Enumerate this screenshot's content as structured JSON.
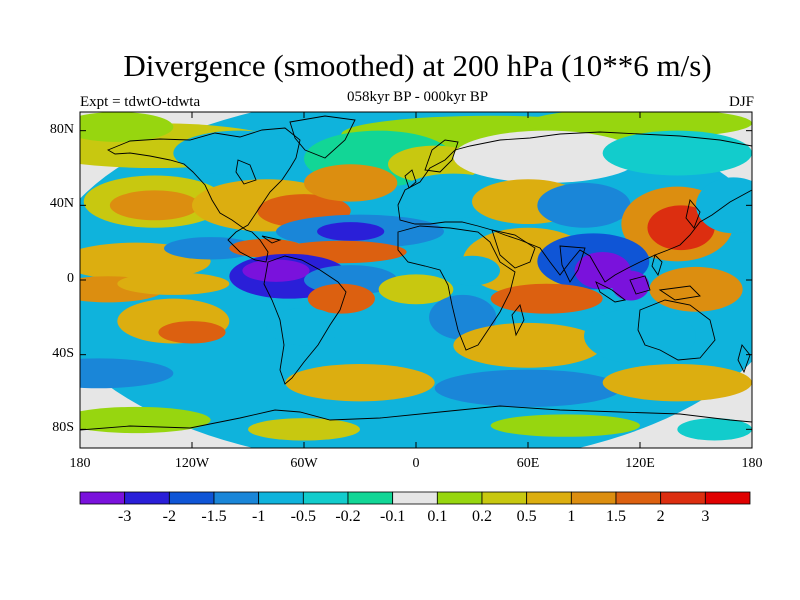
{
  "header": {
    "title": "Divergence (smoothed) at 200 hPa (10**6 m/s)",
    "subtitle": "058kyr BP - 000kyr BP",
    "experiment": "Expt = tdwtO-tdwta",
    "season": "DJF"
  },
  "axes": {
    "lat_labels": [
      "80N",
      "40N",
      "0",
      "40S",
      "80S"
    ],
    "lat_values": [
      80,
      40,
      0,
      -40,
      -80
    ],
    "lon_labels": [
      "180",
      "120W",
      "60W",
      "0",
      "60E",
      "120E",
      "180"
    ],
    "lon_values": [
      -180,
      -120,
      -60,
      0,
      60,
      120,
      180
    ],
    "lat_range": [
      -90,
      90
    ],
    "lon_range": [
      -180,
      180
    ]
  },
  "colorbar": {
    "colors": [
      "#7a12dc",
      "#2a1fd8",
      "#0f55d6",
      "#1a86d8",
      "#0fb3dc",
      "#12cccc",
      "#12d696",
      "#e6e6e6",
      "#97d60f",
      "#c8c810",
      "#dcae10",
      "#dc8e10",
      "#dc6010",
      "#dc2e10",
      "#e00000"
    ],
    "labels": [
      "-3",
      "-2",
      "-1.5",
      "-1",
      "-0.5",
      "-0.2",
      "-0.1",
      "0.1",
      "0.2",
      "0.5",
      "1",
      "1.5",
      "2",
      "3"
    ]
  },
  "field_blobs": [
    {
      "lon": 0,
      "lat": 0,
      "rx": 200,
      "ry": 100,
      "c": 4
    },
    {
      "lon": -140,
      "lat": 72,
      "rx": 70,
      "ry": 12,
      "c": 9
    },
    {
      "lon": 40,
      "lat": 78,
      "rx": 80,
      "ry": 10,
      "c": 8
    },
    {
      "lon": 120,
      "lat": 84,
      "rx": 60,
      "ry": 8,
      "c": 8
    },
    {
      "lon": -160,
      "lat": 82,
      "rx": 30,
      "ry": 8,
      "c": 8
    },
    {
      "lon": -95,
      "lat": 68,
      "rx": 35,
      "ry": 12,
      "c": 4
    },
    {
      "lon": -20,
      "lat": 65,
      "rx": 40,
      "ry": 15,
      "c": 6
    },
    {
      "lon": 10,
      "lat": 62,
      "rx": 25,
      "ry": 10,
      "c": 9
    },
    {
      "lon": 70,
      "lat": 66,
      "rx": 50,
      "ry": 14,
      "c": 7
    },
    {
      "lon": 140,
      "lat": 68,
      "rx": 40,
      "ry": 12,
      "c": 5
    },
    {
      "lon": -140,
      "lat": 42,
      "rx": 38,
      "ry": 14,
      "c": 9
    },
    {
      "lon": -140,
      "lat": 40,
      "rx": 24,
      "ry": 8,
      "c": 11
    },
    {
      "lon": -80,
      "lat": 40,
      "rx": 40,
      "ry": 14,
      "c": 10
    },
    {
      "lon": -60,
      "lat": 37,
      "rx": 25,
      "ry": 9,
      "c": 12
    },
    {
      "lon": -35,
      "lat": 52,
      "rx": 25,
      "ry": 10,
      "c": 11
    },
    {
      "lon": -30,
      "lat": 26,
      "rx": 45,
      "ry": 9,
      "c": 3
    },
    {
      "lon": -35,
      "lat": 26,
      "rx": 18,
      "ry": 5,
      "c": 1
    },
    {
      "lon": 20,
      "lat": 45,
      "rx": 30,
      "ry": 12,
      "c": 4
    },
    {
      "lon": 60,
      "lat": 42,
      "rx": 30,
      "ry": 12,
      "c": 10
    },
    {
      "lon": 90,
      "lat": 40,
      "rx": 25,
      "ry": 12,
      "c": 3
    },
    {
      "lon": 140,
      "lat": 30,
      "rx": 30,
      "ry": 20,
      "c": 11
    },
    {
      "lon": 142,
      "lat": 28,
      "rx": 18,
      "ry": 12,
      "c": 13
    },
    {
      "lon": 170,
      "lat": 40,
      "rx": 20,
      "ry": 15,
      "c": 4
    },
    {
      "lon": -150,
      "lat": 10,
      "rx": 40,
      "ry": 10,
      "c": 10
    },
    {
      "lon": -110,
      "lat": 17,
      "rx": 25,
      "ry": 6,
      "c": 3
    },
    {
      "lon": -80,
      "lat": 17,
      "rx": 20,
      "ry": 5,
      "c": 12
    },
    {
      "lon": -40,
      "lat": 15,
      "rx": 35,
      "ry": 6,
      "c": 12
    },
    {
      "lon": 65,
      "lat": 15,
      "rx": 25,
      "ry": 12,
      "c": 13
    },
    {
      "lon": 60,
      "lat": 10,
      "rx": 35,
      "ry": 18,
      "c": 10
    },
    {
      "lon": 95,
      "lat": 10,
      "rx": 30,
      "ry": 15,
      "c": 2
    },
    {
      "lon": 100,
      "lat": 5,
      "rx": 15,
      "ry": 10,
      "c": 0
    },
    {
      "lon": 115,
      "lat": -3,
      "rx": 10,
      "ry": 8,
      "c": 0
    },
    {
      "lon": -165,
      "lat": -5,
      "rx": 30,
      "ry": 7,
      "c": 11
    },
    {
      "lon": -130,
      "lat": -2,
      "rx": 30,
      "ry": 6,
      "c": 10
    },
    {
      "lon": -68,
      "lat": 2,
      "rx": 32,
      "ry": 12,
      "c": 1
    },
    {
      "lon": -75,
      "lat": 5,
      "rx": 18,
      "ry": 6,
      "c": 0
    },
    {
      "lon": -35,
      "lat": 0,
      "rx": 25,
      "ry": 8,
      "c": 3
    },
    {
      "lon": 0,
      "lat": -5,
      "rx": 20,
      "ry": 8,
      "c": 9
    },
    {
      "lon": 30,
      "lat": 5,
      "rx": 15,
      "ry": 8,
      "c": 4
    },
    {
      "lon": 70,
      "lat": -10,
      "rx": 30,
      "ry": 8,
      "c": 12
    },
    {
      "lon": 150,
      "lat": -5,
      "rx": 25,
      "ry": 12,
      "c": 11
    },
    {
      "lon": -40,
      "lat": -10,
      "rx": 18,
      "ry": 8,
      "c": 12
    },
    {
      "lon": 25,
      "lat": -20,
      "rx": 18,
      "ry": 12,
      "c": 3
    },
    {
      "lon": -130,
      "lat": -22,
      "rx": 30,
      "ry": 12,
      "c": 10
    },
    {
      "lon": -120,
      "lat": -28,
      "rx": 18,
      "ry": 6,
      "c": 12
    },
    {
      "lon": -60,
      "lat": -25,
      "rx": 20,
      "ry": 10,
      "c": 4
    },
    {
      "lon": 60,
      "lat": -35,
      "rx": 40,
      "ry": 12,
      "c": 10
    },
    {
      "lon": 120,
      "lat": -30,
      "rx": 30,
      "ry": 15,
      "c": 4
    },
    {
      "lon": -170,
      "lat": -50,
      "rx": 40,
      "ry": 8,
      "c": 3
    },
    {
      "lon": -30,
      "lat": -55,
      "rx": 40,
      "ry": 10,
      "c": 10
    },
    {
      "lon": 60,
      "lat": -58,
      "rx": 50,
      "ry": 10,
      "c": 3
    },
    {
      "lon": 140,
      "lat": -55,
      "rx": 40,
      "ry": 10,
      "c": 10
    },
    {
      "lon": -150,
      "lat": -75,
      "rx": 40,
      "ry": 7,
      "c": 8
    },
    {
      "lon": -60,
      "lat": -80,
      "rx": 30,
      "ry": 6,
      "c": 9
    },
    {
      "lon": 80,
      "lat": -78,
      "rx": 40,
      "ry": 6,
      "c": 8
    },
    {
      "lon": 160,
      "lat": -80,
      "rx": 20,
      "ry": 6,
      "c": 5
    }
  ]
}
